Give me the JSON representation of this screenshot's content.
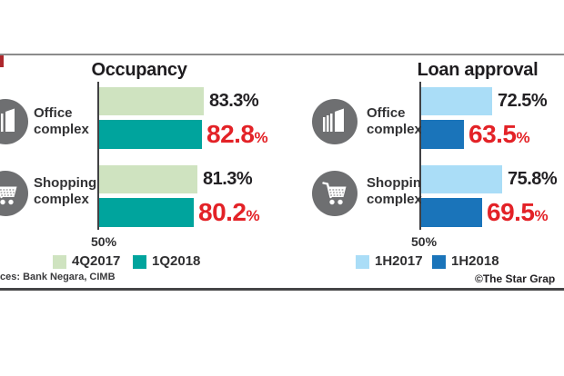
{
  "colors": {
    "background": "#ffffff",
    "top_rule": "#8b8b8b",
    "bottom_rule": "#454547",
    "axis": "#414144",
    "title_text": "#1e1c1f",
    "value_black": "#232124",
    "value_red": "#e32227",
    "row_label_gray": "#333335",
    "icon_circle_gray": "#6e6f71",
    "light_green": "#cfe3c0",
    "teal": "#00a49d",
    "light_blue": "#aaddf7",
    "dark_blue": "#1a74ba",
    "edge_mark_red": "#ad272c"
  },
  "chart_data": [
    {
      "type": "bar",
      "orientation": "horizontal",
      "title": "Occupancy",
      "unit": "%",
      "axis_baseline": 50,
      "baseline_label": "50%",
      "xlim": [
        50,
        100
      ],
      "grid": false,
      "legend_position": "bottom",
      "categories": [
        "Office complex",
        "Shopping complex"
      ],
      "category_icons": [
        "office-building-icon",
        "shopping-cart-icon"
      ],
      "series": [
        {
          "name": "4Q2017",
          "color": "#cfe3c0",
          "values": [
            83.3,
            81.3
          ],
          "value_style": "black"
        },
        {
          "name": "1Q2018",
          "color": "#00a49d",
          "values": [
            82.8,
            80.2
          ],
          "value_style": "red"
        }
      ]
    },
    {
      "type": "bar",
      "orientation": "horizontal",
      "title": "Loan approval",
      "unit": "%",
      "axis_baseline": 50,
      "baseline_label": "50%",
      "xlim": [
        50,
        100
      ],
      "grid": false,
      "legend_position": "bottom",
      "categories": [
        "Office complex",
        "Shopping complex"
      ],
      "category_icons": [
        "office-building-icon",
        "shopping-cart-icon"
      ],
      "series": [
        {
          "name": "1H2017",
          "color": "#aaddf7",
          "values": [
            72.5,
            75.8
          ],
          "value_style": "black"
        },
        {
          "name": "1H2018",
          "color": "#1a74ba",
          "values": [
            63.5,
            69.5
          ],
          "value_style": "red"
        }
      ]
    }
  ],
  "footer": {
    "sources_text": "ces: Bank Negara, CIMB",
    "credit_text": "©The Star Grap"
  }
}
